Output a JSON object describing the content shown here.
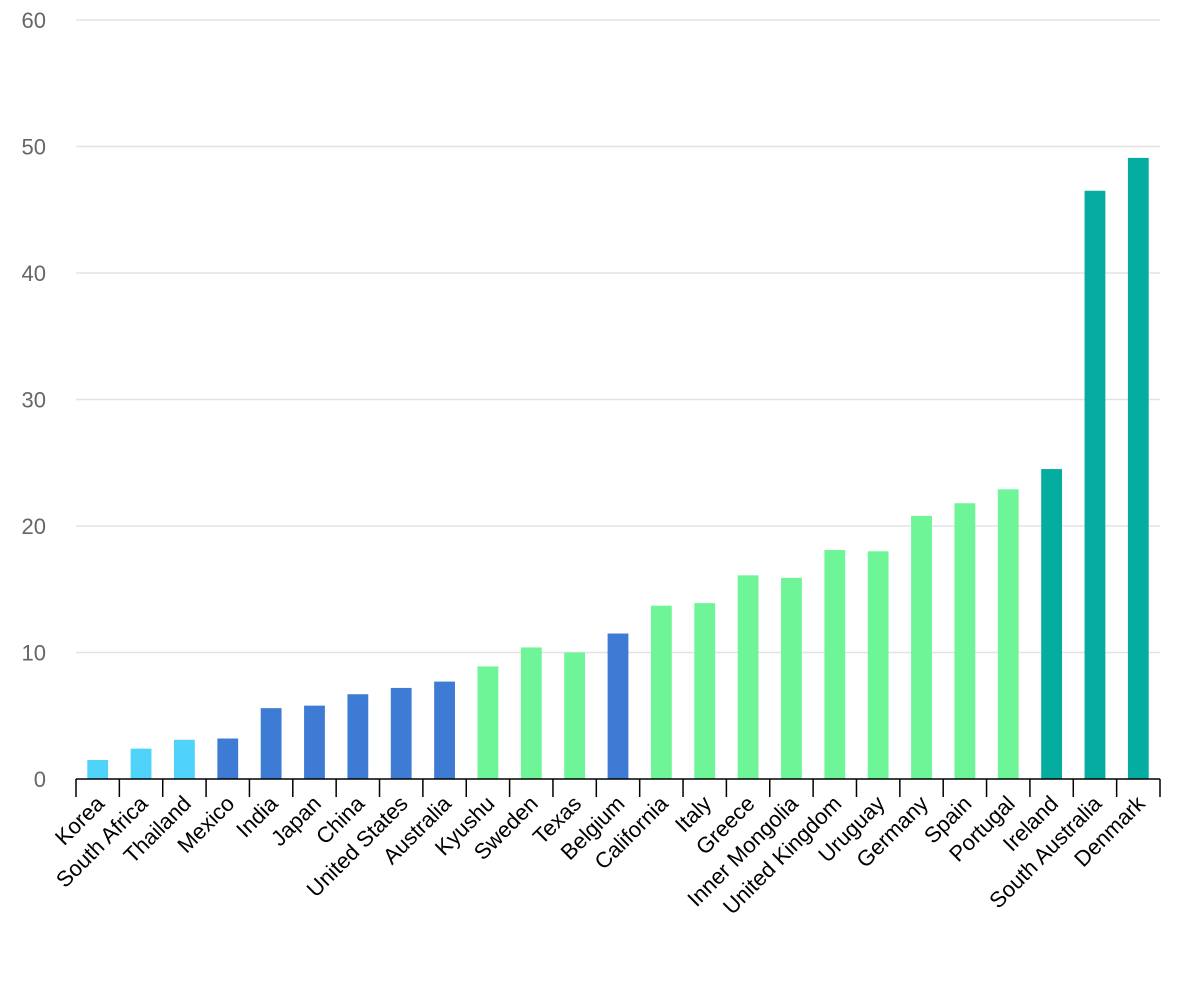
{
  "chart_data": {
    "type": "bar",
    "title": "",
    "xlabel": "",
    "ylabel": "",
    "ylim": [
      0,
      60
    ],
    "yticks": [
      0,
      10,
      20,
      30,
      40,
      50,
      60
    ],
    "grid": true,
    "legend": "none",
    "categories": [
      "Korea",
      "South Africa",
      "Thailand",
      "Mexico",
      "India",
      "Japan",
      "China",
      "United States",
      "Australia",
      "Kyushu",
      "Sweden",
      "Texas",
      "Belgium",
      "California",
      "Italy",
      "Greece",
      "Inner Mongolia",
      "United Kingdom",
      "Uruguay",
      "Germany",
      "Spain",
      "Portugal",
      "Ireland",
      "South Australia",
      "Denmark"
    ],
    "values": [
      1.5,
      2.4,
      3.1,
      3.2,
      5.6,
      5.8,
      6.7,
      7.2,
      7.7,
      8.9,
      10.4,
      10.0,
      11.5,
      13.7,
      13.9,
      16.1,
      15.9,
      18.1,
      18.0,
      20.8,
      21.8,
      22.9,
      24.5,
      46.5,
      49.1
    ],
    "colors": [
      "#4fd3fa",
      "#4fd3fa",
      "#4fd3fa",
      "#3e7bd4",
      "#3e7bd4",
      "#3e7bd4",
      "#3e7bd4",
      "#3e7bd4",
      "#3e7bd4",
      "#6df598",
      "#6df598",
      "#6df598",
      "#3e7bd4",
      "#6df598",
      "#6df598",
      "#6df598",
      "#6df598",
      "#6df598",
      "#6df598",
      "#6df598",
      "#6df598",
      "#6df598",
      "#04ad9f",
      "#04ad9f",
      "#04ad9f"
    ]
  }
}
